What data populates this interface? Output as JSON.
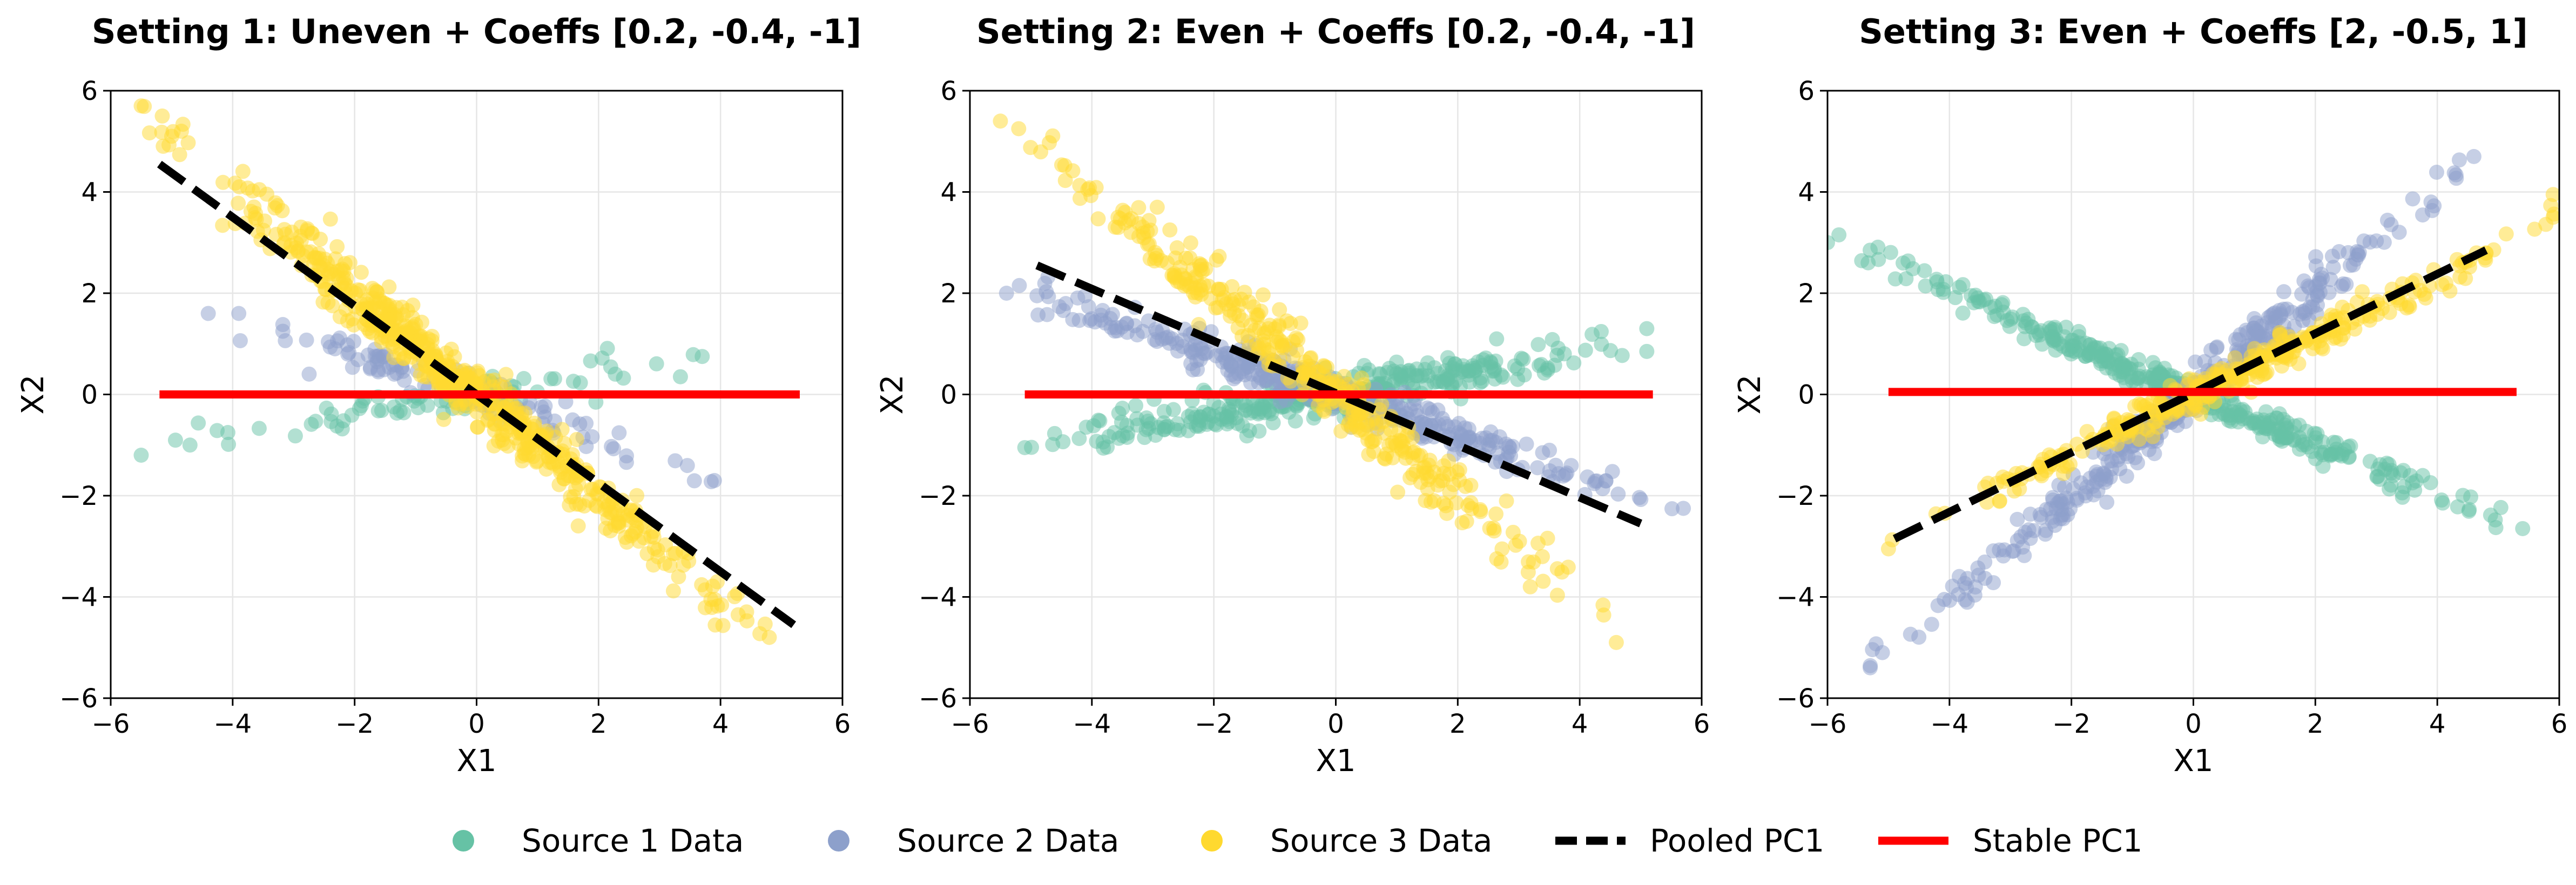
{
  "colors": {
    "source1": "#66c2a5",
    "source2": "#8da0cb",
    "source3": "#ffd92f",
    "pooled": "#000000",
    "stable": "#ff0000",
    "grid": "#e6e6e6"
  },
  "legend": {
    "placement": "bottom-center",
    "items": [
      {
        "label": "Source 1 Data",
        "kind": "marker",
        "color": "#66c2a5"
      },
      {
        "label": "Source 2 Data",
        "kind": "marker",
        "color": "#8da0cb"
      },
      {
        "label": "Source 3 Data",
        "kind": "marker",
        "color": "#ffd92f"
      },
      {
        "label": "Pooled PC1",
        "kind": "dashed-line",
        "color": "#000000"
      },
      {
        "label": "Stable PC1",
        "kind": "solid-line",
        "color": "#ff0000"
      }
    ]
  },
  "chart_data": [
    {
      "type": "scatter",
      "title": "Setting 1: Uneven + Coeffs [0.2, -0.4, -1]",
      "xlabel": "X1",
      "ylabel": "X2",
      "xlim": [
        -6,
        6
      ],
      "ylim": [
        -6,
        6
      ],
      "xticks": [
        -6,
        -4,
        -2,
        0,
        2,
        4,
        6
      ],
      "yticks": [
        -6,
        -4,
        -2,
        0,
        2,
        4,
        6
      ],
      "tick_labels": [
        "−6",
        "−4",
        "−2",
        "0",
        "2",
        "4",
        "6"
      ],
      "grid": true,
      "series": [
        {
          "name": "Source 1 Data",
          "slope": 0.2,
          "spread": 0.2,
          "x_range": [
            -5.5,
            3.7
          ],
          "count": 80,
          "extreme_points": [
            [
              -5.5,
              -1.2
            ],
            [
              -4.7,
              -1.0
            ],
            [
              3.7,
              0.75
            ]
          ]
        },
        {
          "name": "Source 2 Data",
          "slope": -0.4,
          "spread": 0.2,
          "x_range": [
            -4.4,
            3.9
          ],
          "count": 110,
          "extreme_points": [
            [
              -4.4,
              1.6
            ],
            [
              -3.9,
              1.6
            ],
            [
              3.9,
              -1.7
            ]
          ]
        },
        {
          "name": "Source 3 Data",
          "slope": -1.0,
          "spread": 0.3,
          "x_range": [
            -5.5,
            4.8
          ],
          "count": 600,
          "extreme_points": [
            [
              -5.5,
              5.7
            ],
            [
              -5.0,
              5.1
            ],
            [
              4.8,
              -4.8
            ]
          ]
        }
      ],
      "lines": [
        {
          "name": "Pooled PC1",
          "style": "dashed",
          "x": [
            -5.2,
            5.2
          ],
          "y": [
            4.55,
            -4.55
          ]
        },
        {
          "name": "Stable PC1",
          "style": "solid",
          "x": [
            -5.2,
            5.3
          ],
          "y": [
            0.0,
            0.0
          ]
        }
      ]
    },
    {
      "type": "scatter",
      "title": "Setting 2: Even + Coeffs [0.2, -0.4, -1]",
      "xlabel": "X1",
      "ylabel": "X2",
      "xlim": [
        -6,
        6
      ],
      "ylim": [
        -6,
        6
      ],
      "xticks": [
        -6,
        -4,
        -2,
        0,
        2,
        4,
        6
      ],
      "yticks": [
        -6,
        -4,
        -2,
        0,
        2,
        4,
        6
      ],
      "tick_labels": [
        "−6",
        "−4",
        "−2",
        "0",
        "2",
        "4",
        "6"
      ],
      "grid": true,
      "series": [
        {
          "name": "Source 1 Data",
          "slope": 0.2,
          "spread": 0.2,
          "x_range": [
            -5.1,
            5.1
          ],
          "count": 350,
          "extreme_points": [
            [
              -5.1,
              -1.05
            ],
            [
              5.1,
              1.3
            ],
            [
              5.1,
              0.85
            ]
          ]
        },
        {
          "name": "Source 2 Data",
          "slope": -0.4,
          "spread": 0.2,
          "x_range": [
            -5.4,
            5.7
          ],
          "count": 350,
          "extreme_points": [
            [
              -5.4,
              2.0
            ],
            [
              -4.9,
              1.95
            ],
            [
              5.7,
              -2.25
            ]
          ]
        },
        {
          "name": "Source 3 Data",
          "slope": -1.0,
          "spread": 0.3,
          "x_range": [
            -5.5,
            4.6
          ],
          "count": 350,
          "extreme_points": [
            [
              -5.5,
              5.4
            ],
            [
              -5.2,
              5.25
            ],
            [
              4.6,
              -4.9
            ]
          ]
        }
      ],
      "lines": [
        {
          "name": "Pooled PC1",
          "style": "dashed",
          "x": [
            -4.9,
            5.0
          ],
          "y": [
            2.55,
            -2.55
          ]
        },
        {
          "name": "Stable PC1",
          "style": "solid",
          "x": [
            -5.1,
            5.2
          ],
          "y": [
            0.0,
            0.0
          ]
        }
      ]
    },
    {
      "type": "scatter",
      "title": "Setting 3: Even + Coeffs [2, -0.5, 1]",
      "xlabel": "X1",
      "ylabel": "X2",
      "xlim": [
        -6,
        6
      ],
      "ylim": [
        -6,
        6
      ],
      "xticks": [
        -6,
        -4,
        -2,
        0,
        2,
        4,
        6
      ],
      "yticks": [
        -6,
        -4,
        -2,
        0,
        2,
        4,
        6
      ],
      "tick_labels": [
        "−6",
        "−4",
        "−2",
        "0",
        "2",
        "4",
        "6"
      ],
      "grid": true,
      "series": [
        {
          "name": "Source 1 Data",
          "slope": -0.5,
          "spread": 0.15,
          "x_range": [
            -6.0,
            5.4
          ],
          "count": 350,
          "extreme_points": [
            [
              -6.0,
              3.0
            ],
            [
              -5.3,
              2.85
            ],
            [
              5.4,
              -2.65
            ]
          ]
        },
        {
          "name": "Source 2 Data",
          "slope": 1.0,
          "spread": 0.25,
          "x_range": [
            -5.3,
            4.6
          ],
          "count": 350,
          "extreme_points": [
            [
              -5.3,
              -5.4
            ],
            [
              -5.1,
              -5.1
            ],
            [
              4.6,
              4.7
            ]
          ]
        },
        {
          "name": "Source 3 Data",
          "slope": 0.58,
          "spread": 0.15,
          "x_range": [
            -5.0,
            6.0
          ],
          "count": 350,
          "extreme_points": [
            [
              -5.0,
              -3.05
            ],
            [
              5.9,
              3.95
            ],
            [
              5.9,
              3.5
            ]
          ]
        }
      ],
      "lines": [
        {
          "name": "Pooled PC1",
          "style": "dashed",
          "x": [
            -4.9,
            4.8
          ],
          "y": [
            -2.85,
            2.85
          ]
        },
        {
          "name": "Stable PC1",
          "style": "solid",
          "x": [
            -5.0,
            5.3
          ],
          "y": [
            0.05,
            0.05
          ]
        }
      ]
    }
  ]
}
